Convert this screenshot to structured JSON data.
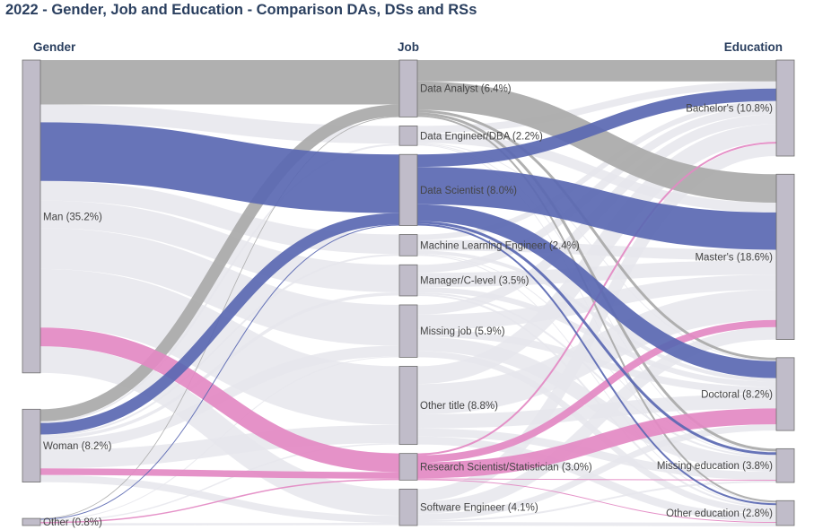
{
  "title": "2022 - Gender, Job and Education - Comparison DAs, DSs and RSs",
  "colors": {
    "node": "#c0bcc9",
    "link_default": "#e6e6ec",
    "data_analyst": "#a9a9a9",
    "data_scientist": "#5a68b2",
    "research_scientist": "#e389c3"
  },
  "chart_data": {
    "type": "sankey",
    "title": "2022 - Gender, Job and Education - Comparison DAs, DSs and RSs",
    "columns": [
      "Gender",
      "Job",
      "Education"
    ],
    "nodes": [
      {
        "id": "man",
        "column": 0,
        "label": "Man (35.2%)",
        "value": 35.2
      },
      {
        "id": "woman",
        "column": 0,
        "label": "Woman (8.2%)",
        "value": 8.2
      },
      {
        "id": "other",
        "column": 0,
        "label": "Other (0.8%)",
        "value": 0.8
      },
      {
        "id": "da",
        "column": 1,
        "label": "Data Analyst (6.4%)",
        "value": 6.4
      },
      {
        "id": "de",
        "column": 1,
        "label": "Data Engineer/DBA (2.2%)",
        "value": 2.2
      },
      {
        "id": "ds",
        "column": 1,
        "label": "Data Scientist (8.0%)",
        "value": 8.0
      },
      {
        "id": "mle",
        "column": 1,
        "label": "Machine Learning Engineer (2.4%)",
        "value": 2.4
      },
      {
        "id": "mgr",
        "column": 1,
        "label": "Manager/C-level (3.5%)",
        "value": 3.5
      },
      {
        "id": "mj",
        "column": 1,
        "label": "Missing job (5.9%)",
        "value": 5.9
      },
      {
        "id": "ot",
        "column": 1,
        "label": "Other title (8.8%)",
        "value": 8.8
      },
      {
        "id": "rs",
        "column": 1,
        "label": "Research Scientist/Statistician (3.0%)",
        "value": 3.0
      },
      {
        "id": "se",
        "column": 1,
        "label": "Software Engineer (4.1%)",
        "value": 4.1
      },
      {
        "id": "bach",
        "column": 2,
        "label": "Bachelor's (10.8%)",
        "value": 10.8
      },
      {
        "id": "mast",
        "column": 2,
        "label": "Master's (18.6%)",
        "value": 18.6
      },
      {
        "id": "doc",
        "column": 2,
        "label": "Doctoral (8.2%)",
        "value": 8.2
      },
      {
        "id": "me",
        "column": 2,
        "label": "Missing education (3.8%)",
        "value": 3.8
      },
      {
        "id": "oe",
        "column": 2,
        "label": "Other education (2.8%)",
        "value": 2.8
      }
    ],
    "links": [
      {
        "source": "man",
        "target": "da",
        "value": 5.0,
        "color": "data_analyst"
      },
      {
        "source": "man",
        "target": "de",
        "value": 2.0,
        "color": "link_default"
      },
      {
        "source": "man",
        "target": "ds",
        "value": 6.6,
        "color": "data_scientist"
      },
      {
        "source": "man",
        "target": "mle",
        "value": 2.2,
        "color": "link_default"
      },
      {
        "source": "man",
        "target": "mgr",
        "value": 3.1,
        "color": "link_default"
      },
      {
        "source": "man",
        "target": "mj",
        "value": 4.6,
        "color": "link_default"
      },
      {
        "source": "man",
        "target": "ot",
        "value": 6.6,
        "color": "link_default"
      },
      {
        "source": "man",
        "target": "rs",
        "value": 2.1,
        "color": "research_scientist"
      },
      {
        "source": "man",
        "target": "se",
        "value": 3.0,
        "color": "link_default"
      },
      {
        "source": "woman",
        "target": "da",
        "value": 1.35,
        "color": "data_analyst"
      },
      {
        "source": "woman",
        "target": "de",
        "value": 0.2,
        "color": "link_default"
      },
      {
        "source": "woman",
        "target": "ds",
        "value": 1.3,
        "color": "data_scientist"
      },
      {
        "source": "woman",
        "target": "mle",
        "value": 0.2,
        "color": "link_default"
      },
      {
        "source": "woman",
        "target": "mgr",
        "value": 0.35,
        "color": "link_default"
      },
      {
        "source": "woman",
        "target": "mj",
        "value": 1.2,
        "color": "link_default"
      },
      {
        "source": "woman",
        "target": "ot",
        "value": 2.05,
        "color": "link_default"
      },
      {
        "source": "woman",
        "target": "rs",
        "value": 0.75,
        "color": "research_scientist"
      },
      {
        "source": "woman",
        "target": "se",
        "value": 0.8,
        "color": "link_default"
      },
      {
        "source": "other",
        "target": "da",
        "value": 0.05,
        "color": "data_analyst"
      },
      {
        "source": "other",
        "target": "ds",
        "value": 0.1,
        "color": "data_scientist"
      },
      {
        "source": "other",
        "target": "mj",
        "value": 0.1,
        "color": "link_default"
      },
      {
        "source": "other",
        "target": "ot",
        "value": 0.15,
        "color": "link_default"
      },
      {
        "source": "other",
        "target": "rs",
        "value": 0.15,
        "color": "research_scientist"
      },
      {
        "source": "other",
        "target": "se",
        "value": 0.25,
        "color": "link_default"
      },
      {
        "source": "da",
        "target": "bach",
        "value": 2.4,
        "color": "data_analyst"
      },
      {
        "source": "da",
        "target": "mast",
        "value": 3.2,
        "color": "data_analyst"
      },
      {
        "source": "da",
        "target": "doc",
        "value": 0.3,
        "color": "data_analyst"
      },
      {
        "source": "da",
        "target": "me",
        "value": 0.3,
        "color": "data_analyst"
      },
      {
        "source": "da",
        "target": "oe",
        "value": 0.2,
        "color": "data_analyst"
      },
      {
        "source": "de",
        "target": "bach",
        "value": 0.8,
        "color": "link_default"
      },
      {
        "source": "de",
        "target": "mast",
        "value": 1.1,
        "color": "link_default"
      },
      {
        "source": "de",
        "target": "doc",
        "value": 0.1,
        "color": "link_default"
      },
      {
        "source": "de",
        "target": "me",
        "value": 0.1,
        "color": "link_default"
      },
      {
        "source": "de",
        "target": "oe",
        "value": 0.1,
        "color": "link_default"
      },
      {
        "source": "ds",
        "target": "bach",
        "value": 1.4,
        "color": "data_scientist"
      },
      {
        "source": "ds",
        "target": "mast",
        "value": 4.2,
        "color": "data_scientist"
      },
      {
        "source": "ds",
        "target": "doc",
        "value": 1.9,
        "color": "data_scientist"
      },
      {
        "source": "ds",
        "target": "me",
        "value": 0.3,
        "color": "data_scientist"
      },
      {
        "source": "ds",
        "target": "oe",
        "value": 0.2,
        "color": "data_scientist"
      },
      {
        "source": "mle",
        "target": "bach",
        "value": 0.6,
        "color": "link_default"
      },
      {
        "source": "mle",
        "target": "mast",
        "value": 1.2,
        "color": "link_default"
      },
      {
        "source": "mle",
        "target": "doc",
        "value": 0.4,
        "color": "link_default"
      },
      {
        "source": "mle",
        "target": "me",
        "value": 0.1,
        "color": "link_default"
      },
      {
        "source": "mle",
        "target": "oe",
        "value": 0.1,
        "color": "link_default"
      },
      {
        "source": "mgr",
        "target": "bach",
        "value": 0.9,
        "color": "link_default"
      },
      {
        "source": "mgr",
        "target": "mast",
        "value": 1.6,
        "color": "link_default"
      },
      {
        "source": "mgr",
        "target": "doc",
        "value": 0.6,
        "color": "link_default"
      },
      {
        "source": "mgr",
        "target": "me",
        "value": 0.2,
        "color": "link_default"
      },
      {
        "source": "mgr",
        "target": "oe",
        "value": 0.2,
        "color": "link_default"
      },
      {
        "source": "mj",
        "target": "bach",
        "value": 1.1,
        "color": "link_default"
      },
      {
        "source": "mj",
        "target": "mast",
        "value": 1.7,
        "color": "link_default"
      },
      {
        "source": "mj",
        "target": "doc",
        "value": 0.8,
        "color": "link_default"
      },
      {
        "source": "mj",
        "target": "me",
        "value": 1.6,
        "color": "link_default"
      },
      {
        "source": "mj",
        "target": "oe",
        "value": 0.7,
        "color": "link_default"
      },
      {
        "source": "ot",
        "target": "bach",
        "value": 2.0,
        "color": "link_default"
      },
      {
        "source": "ot",
        "target": "mast",
        "value": 3.4,
        "color": "link_default"
      },
      {
        "source": "ot",
        "target": "doc",
        "value": 1.6,
        "color": "link_default"
      },
      {
        "source": "ot",
        "target": "me",
        "value": 0.9,
        "color": "link_default"
      },
      {
        "source": "ot",
        "target": "oe",
        "value": 0.9,
        "color": "link_default"
      },
      {
        "source": "rs",
        "target": "bach",
        "value": 0.2,
        "color": "research_scientist"
      },
      {
        "source": "rs",
        "target": "mast",
        "value": 0.8,
        "color": "research_scientist"
      },
      {
        "source": "rs",
        "target": "doc",
        "value": 1.8,
        "color": "research_scientist"
      },
      {
        "source": "rs",
        "target": "me",
        "value": 0.1,
        "color": "research_scientist"
      },
      {
        "source": "rs",
        "target": "oe",
        "value": 0.1,
        "color": "research_scientist"
      },
      {
        "source": "se",
        "target": "bach",
        "value": 1.4,
        "color": "link_default"
      },
      {
        "source": "se",
        "target": "mast",
        "value": 1.4,
        "color": "link_default"
      },
      {
        "source": "se",
        "target": "doc",
        "value": 0.7,
        "color": "link_default"
      },
      {
        "source": "se",
        "target": "me",
        "value": 0.2,
        "color": "link_default"
      },
      {
        "source": "se",
        "target": "oe",
        "value": 0.4,
        "color": "link_default"
      }
    ]
  }
}
